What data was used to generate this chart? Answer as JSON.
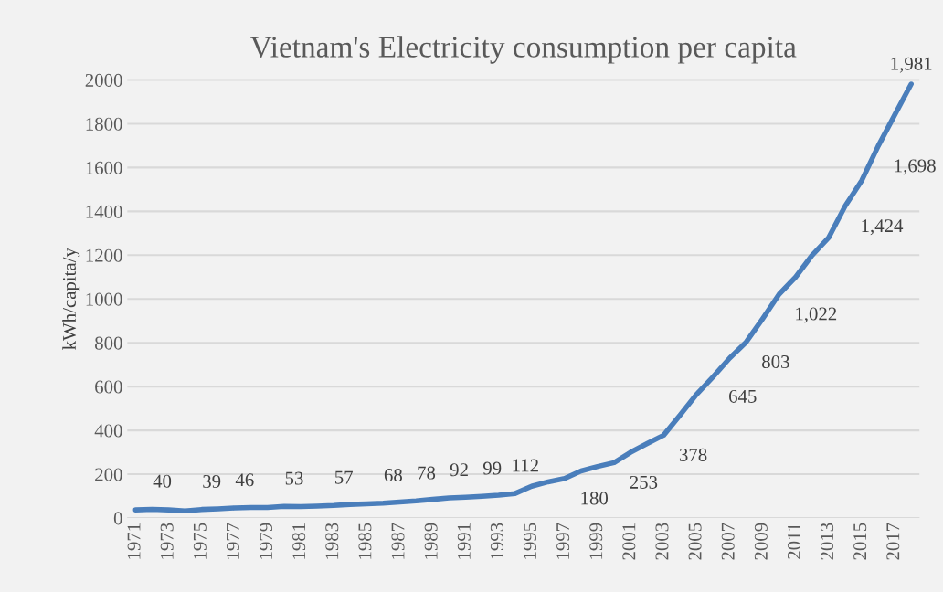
{
  "chart_data": {
    "type": "line",
    "title": "Vietnam's Electricity consumption per capita",
    "ylabel": "kWh/capita/y",
    "categories": [
      "1971",
      null,
      "1973",
      null,
      "1975",
      null,
      "1977",
      null,
      "1979",
      null,
      "1981",
      null,
      "1983",
      null,
      "1985",
      null,
      "1987",
      null,
      "1989",
      null,
      "1991",
      null,
      "1993",
      null,
      "1995",
      null,
      "1997",
      null,
      "1999",
      null,
      "2001",
      null,
      "2003",
      null,
      "2005",
      null,
      "2007",
      null,
      "2009",
      null,
      "2011",
      null,
      "2013",
      null,
      "2015",
      null,
      "2017",
      null
    ],
    "series": [
      {
        "color": "#4a7ebb",
        "values": [
          37,
          40,
          37,
          32,
          39,
          42,
          46,
          48,
          48,
          53,
          52,
          54,
          57,
          62,
          65,
          68,
          73,
          78,
          85,
          92,
          95,
          99,
          104,
          112,
          145,
          165,
          180,
          215,
          235,
          253,
          300,
          340,
          378,
          470,
          565,
          645,
          730,
          803,
          910,
          1022,
          1100,
          1200,
          1280,
          1424,
          1540,
          1698,
          1840,
          1981
        ],
        "value_labels": [
          null,
          "40",
          null,
          null,
          "39",
          null,
          "46",
          null,
          null,
          "53",
          null,
          null,
          "57",
          null,
          null,
          "68",
          null,
          "78",
          null,
          "92",
          null,
          "99",
          null,
          "112",
          null,
          null,
          "180",
          null,
          null,
          "253",
          null,
          null,
          "378",
          null,
          null,
          "645",
          null,
          "803",
          null,
          "1,022",
          null,
          null,
          null,
          "1,424",
          null,
          "1,698",
          null,
          "1,981"
        ]
      }
    ],
    "ylim": [
      0,
      2000
    ],
    "yticks": [
      0,
      200,
      400,
      600,
      800,
      1000,
      1200,
      1400,
      1600,
      1800,
      2000
    ],
    "grid": "y",
    "legend": false,
    "marker": "none",
    "line_style": "solid"
  }
}
